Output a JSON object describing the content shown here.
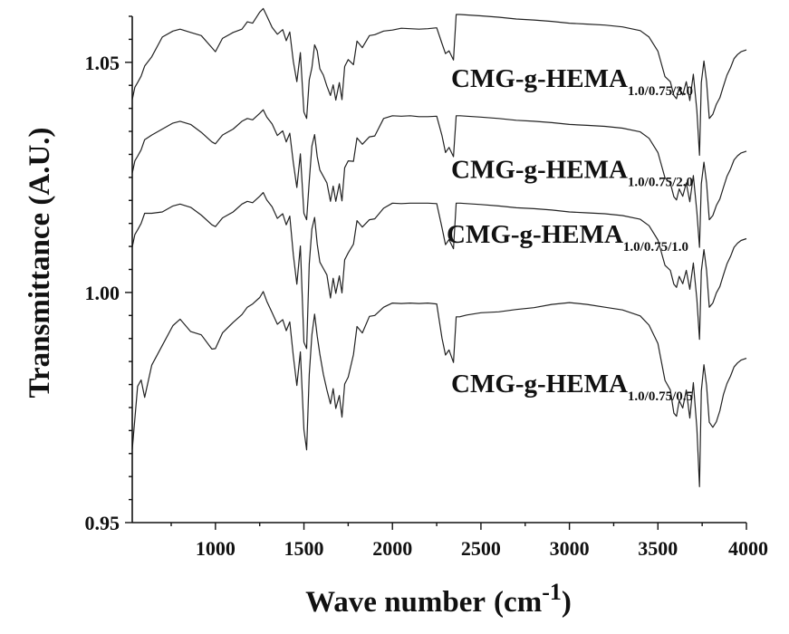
{
  "chart_data": {
    "type": "line",
    "title": "",
    "xlabel": "Wave number",
    "xlabel_unit_base": "cm",
    "xlabel_unit_exp": "-1",
    "ylabel": "Transmittance (A.U.)",
    "xlim": [
      530,
      4000
    ],
    "ylim": [
      0.95,
      1.06
    ],
    "xticks": [
      1000,
      1500,
      2000,
      2500,
      3000,
      3500,
      4000
    ],
    "xtick_labels": [
      "1000",
      "1500",
      "2000",
      "2500",
      "3000",
      "3500",
      "4000"
    ],
    "yticks": [
      0.95,
      1.0,
      1.05
    ],
    "ytick_labels": [
      "0.95",
      "1.00",
      "1.05"
    ],
    "grid": false,
    "legend": "inline labels",
    "series": [
      {
        "name": "CMG-g-HEMA",
        "subscript": "1.0/0.75/3.0",
        "label_x": 4000,
        "label_y": 1.0447,
        "x": [
          530,
          545,
          560,
          580,
          600,
          640,
          700,
          760,
          800,
          860,
          920,
          980,
          1000,
          1040,
          1100,
          1150,
          1180,
          1210,
          1250,
          1270,
          1290,
          1320,
          1350,
          1380,
          1400,
          1420,
          1440,
          1460,
          1480,
          1500,
          1515,
          1530,
          1545,
          1560,
          1575,
          1590,
          1610,
          1630,
          1650,
          1665,
          1680,
          1700,
          1715,
          1730,
          1750,
          1780,
          1800,
          1830,
          1870,
          1900,
          1950,
          2000,
          2050,
          2100,
          2150,
          2200,
          2250,
          2280,
          2300,
          2320,
          2345,
          2360,
          2380,
          2420,
          2500,
          2600,
          2700,
          2800,
          2900,
          3000,
          3100,
          3200,
          3300,
          3400,
          3450,
          3500,
          3540,
          3570,
          3590,
          3605,
          3620,
          3640,
          3660,
          3680,
          3700,
          3720,
          3735,
          3745,
          3760,
          3775,
          3790,
          3810,
          3830,
          3850,
          3870,
          3890,
          3910,
          3930,
          3950,
          3970,
          4000
        ],
        "y": [
          1.0419,
          1.0446,
          1.0456,
          1.047,
          1.0492,
          1.0512,
          1.0555,
          1.0568,
          1.0572,
          1.0565,
          1.0558,
          1.0532,
          1.0523,
          1.0552,
          1.0565,
          1.0572,
          1.0588,
          1.0585,
          1.0609,
          1.0617,
          1.0601,
          1.0576,
          1.0561,
          1.0571,
          1.0547,
          1.0566,
          1.0502,
          1.0458,
          1.0521,
          1.0392,
          1.0378,
          1.0462,
          1.0488,
          1.0538,
          1.0525,
          1.0486,
          1.0472,
          1.0448,
          1.0428,
          1.0451,
          1.0418,
          1.0456,
          1.0419,
          1.0491,
          1.0506,
          1.0495,
          1.0546,
          1.0532,
          1.0558,
          1.056,
          1.0568,
          1.057,
          1.0574,
          1.0573,
          1.0572,
          1.0573,
          1.0575,
          1.0541,
          1.0519,
          1.0525,
          1.0505,
          1.0604,
          1.0604,
          1.0603,
          1.0601,
          1.0598,
          1.0594,
          1.0592,
          1.0589,
          1.0585,
          1.0583,
          1.0581,
          1.0577,
          1.0569,
          1.0555,
          1.0524,
          1.0469,
          1.0458,
          1.0428,
          1.0421,
          1.0445,
          1.0429,
          1.0458,
          1.0417,
          1.0474,
          1.0395,
          1.0298,
          1.0456,
          1.0503,
          1.0458,
          1.0378,
          1.0387,
          1.0409,
          1.0423,
          1.0448,
          1.0472,
          1.0488,
          1.0508,
          1.0517,
          1.0523,
          1.0527
        ]
      },
      {
        "name": "CMG-g-HEMA",
        "subscript": "1.0/0.75/2.0",
        "label_x": 4000,
        "label_y": 1.0249,
        "x": [
          530,
          545,
          560,
          580,
          600,
          640,
          700,
          760,
          800,
          860,
          920,
          980,
          1000,
          1040,
          1100,
          1150,
          1180,
          1210,
          1250,
          1270,
          1290,
          1320,
          1350,
          1380,
          1400,
          1420,
          1440,
          1460,
          1480,
          1500,
          1515,
          1530,
          1545,
          1560,
          1575,
          1590,
          1610,
          1630,
          1650,
          1665,
          1680,
          1700,
          1715,
          1730,
          1750,
          1780,
          1800,
          1830,
          1870,
          1900,
          1950,
          2000,
          2050,
          2100,
          2150,
          2200,
          2250,
          2280,
          2300,
          2320,
          2345,
          2360,
          2380,
          2420,
          2500,
          2600,
          2700,
          2800,
          2900,
          3000,
          3100,
          3200,
          3300,
          3400,
          3450,
          3500,
          3540,
          3570,
          3590,
          3605,
          3620,
          3640,
          3660,
          3680,
          3700,
          3720,
          3735,
          3745,
          3760,
          3775,
          3790,
          3810,
          3830,
          3850,
          3870,
          3890,
          3910,
          3930,
          3950,
          3970,
          4000
        ],
        "y": [
          1.0259,
          1.0286,
          1.0296,
          1.031,
          1.0332,
          1.0342,
          1.0355,
          1.0368,
          1.0372,
          1.0365,
          1.0348,
          1.0327,
          1.0323,
          1.0342,
          1.0355,
          1.0372,
          1.0378,
          1.0375,
          1.0389,
          1.0397,
          1.0381,
          1.0366,
          1.0341,
          1.0351,
          1.0327,
          1.0346,
          1.0282,
          1.0228,
          1.0301,
          1.0172,
          1.0158,
          1.0242,
          1.0318,
          1.0343,
          1.0295,
          1.0266,
          1.0252,
          1.0238,
          1.0198,
          1.0231,
          1.0198,
          1.0236,
          1.0199,
          1.0271,
          1.0286,
          1.0285,
          1.0336,
          1.0322,
          1.0338,
          1.034,
          1.0378,
          1.0384,
          1.0383,
          1.0384,
          1.0382,
          1.0382,
          1.0383,
          1.0341,
          1.0304,
          1.0315,
          1.0295,
          1.0384,
          1.0384,
          1.0383,
          1.0381,
          1.0378,
          1.0374,
          1.0372,
          1.0369,
          1.0365,
          1.0363,
          1.0361,
          1.0357,
          1.0349,
          1.0335,
          1.0304,
          1.0249,
          1.0238,
          1.0208,
          1.0201,
          1.0225,
          1.0209,
          1.0238,
          1.0197,
          1.0254,
          1.0175,
          1.0098,
          1.0236,
          1.0283,
          1.0238,
          1.0158,
          1.0167,
          1.0189,
          1.0203,
          1.0228,
          1.0252,
          1.0268,
          1.0288,
          1.0297,
          1.0303,
          1.0307
        ]
      },
      {
        "name": "CMG-g-HEMA",
        "subscript": "1.0/0.75/1.0",
        "label_x": 4000,
        "label_y": 1.0108,
        "x": [
          530,
          545,
          560,
          580,
          600,
          640,
          700,
          760,
          800,
          860,
          920,
          980,
          1000,
          1040,
          1100,
          1150,
          1180,
          1210,
          1250,
          1270,
          1290,
          1320,
          1350,
          1380,
          1400,
          1420,
          1440,
          1460,
          1480,
          1500,
          1515,
          1530,
          1545,
          1560,
          1575,
          1590,
          1610,
          1630,
          1650,
          1665,
          1680,
          1700,
          1715,
          1730,
          1750,
          1780,
          1800,
          1830,
          1870,
          1900,
          1950,
          2000,
          2050,
          2100,
          2150,
          2200,
          2250,
          2280,
          2300,
          2320,
          2345,
          2360,
          2380,
          2420,
          2500,
          2600,
          2700,
          2800,
          2900,
          3000,
          3100,
          3200,
          3300,
          3400,
          3450,
          3500,
          3540,
          3570,
          3590,
          3605,
          3620,
          3640,
          3660,
          3680,
          3700,
          3720,
          3735,
          3745,
          3760,
          3775,
          3790,
          3810,
          3830,
          3850,
          3870,
          3890,
          3910,
          3930,
          3950,
          3970,
          4000
        ],
        "y": [
          1.0099,
          1.0126,
          1.0136,
          1.015,
          1.0172,
          1.0172,
          1.0175,
          1.0188,
          1.0192,
          1.0185,
          1.0168,
          1.0147,
          1.0143,
          1.0162,
          1.0175,
          1.0192,
          1.0198,
          1.0195,
          1.0209,
          1.0217,
          1.0201,
          1.0186,
          1.0161,
          1.0171,
          1.0147,
          1.0166,
          1.0082,
          1.0018,
          1.0101,
          0.9892,
          0.9878,
          1.0062,
          1.0138,
          1.0163,
          1.0105,
          1.0066,
          1.0052,
          1.0038,
          0.9988,
          1.0031,
          0.9998,
          1.0036,
          0.9999,
          1.0071,
          1.0086,
          1.0105,
          1.0156,
          1.0142,
          1.0158,
          1.016,
          1.0183,
          1.0194,
          1.0193,
          1.0194,
          1.0194,
          1.0194,
          1.0193,
          1.0141,
          1.0104,
          1.0115,
          1.0095,
          1.0194,
          1.0194,
          1.0193,
          1.0191,
          1.0188,
          1.0184,
          1.0182,
          1.0179,
          1.0175,
          1.0173,
          1.0171,
          1.0167,
          1.0159,
          1.0145,
          1.0114,
          1.0059,
          1.0048,
          1.0018,
          1.0011,
          1.0035,
          1.0019,
          1.0048,
          1.0007,
          1.0064,
          0.9985,
          0.9898,
          1.0046,
          1.0093,
          1.0048,
          0.9968,
          0.9977,
          0.9999,
          1.0013,
          1.0038,
          1.0062,
          1.0078,
          1.0098,
          1.0107,
          1.0113,
          1.0117
        ]
      },
      {
        "name": "CMG-g-HEMA",
        "subscript": "1.0/0.75/0.5",
        "label_x": 4000,
        "label_y": 0.9783,
        "x": [
          530,
          545,
          560,
          580,
          600,
          640,
          700,
          760,
          800,
          860,
          920,
          980,
          1000,
          1040,
          1100,
          1150,
          1180,
          1210,
          1250,
          1270,
          1290,
          1320,
          1350,
          1380,
          1400,
          1420,
          1440,
          1460,
          1480,
          1500,
          1515,
          1530,
          1545,
          1560,
          1575,
          1590,
          1610,
          1630,
          1650,
          1665,
          1680,
          1700,
          1715,
          1730,
          1750,
          1780,
          1800,
          1830,
          1870,
          1900,
          1950,
          2000,
          2050,
          2100,
          2150,
          2200,
          2250,
          2280,
          2300,
          2320,
          2345,
          2360,
          2380,
          2420,
          2500,
          2600,
          2700,
          2800,
          2900,
          3000,
          3100,
          3200,
          3300,
          3400,
          3450,
          3500,
          3540,
          3570,
          3590,
          3605,
          3620,
          3640,
          3660,
          3680,
          3700,
          3720,
          3735,
          3745,
          3760,
          3775,
          3790,
          3810,
          3830,
          3850,
          3870,
          3890,
          3910,
          3930,
          3950,
          3970,
          4000
        ],
        "y": [
          0.9659,
          0.9726,
          0.9796,
          0.981,
          0.9772,
          0.9842,
          0.9885,
          0.9928,
          0.9942,
          0.9915,
          0.9908,
          0.9877,
          0.9878,
          0.9912,
          0.9935,
          0.9952,
          0.9968,
          0.9975,
          0.9989,
          1.0002,
          0.9981,
          0.9956,
          0.9931,
          0.9941,
          0.9917,
          0.9936,
          0.9862,
          0.9798,
          0.9871,
          0.9702,
          0.9658,
          0.9822,
          0.9908,
          0.9953,
          0.9905,
          0.9866,
          0.9822,
          0.9788,
          0.9758,
          0.9791,
          0.9748,
          0.9776,
          0.9729,
          0.9801,
          0.9816,
          0.9865,
          0.9926,
          0.9912,
          0.9948,
          0.995,
          0.9968,
          0.9977,
          0.9976,
          0.9977,
          0.9976,
          0.9977,
          0.9975,
          0.9901,
          0.9864,
          0.9875,
          0.9848,
          0.9947,
          0.9947,
          0.9951,
          0.9956,
          0.9958,
          0.9963,
          0.9967,
          0.9974,
          0.9978,
          0.9974,
          0.9968,
          0.9962,
          0.9949,
          0.9929,
          0.9889,
          0.9809,
          0.9788,
          0.9738,
          0.9731,
          0.9765,
          0.9749,
          0.9788,
          0.9727,
          0.9804,
          0.9705,
          0.9578,
          0.9786,
          0.9843,
          0.9798,
          0.9718,
          0.9707,
          0.9719,
          0.9743,
          0.9778,
          0.9802,
          0.9818,
          0.9838,
          0.9847,
          0.9853,
          0.9857
        ]
      }
    ]
  }
}
